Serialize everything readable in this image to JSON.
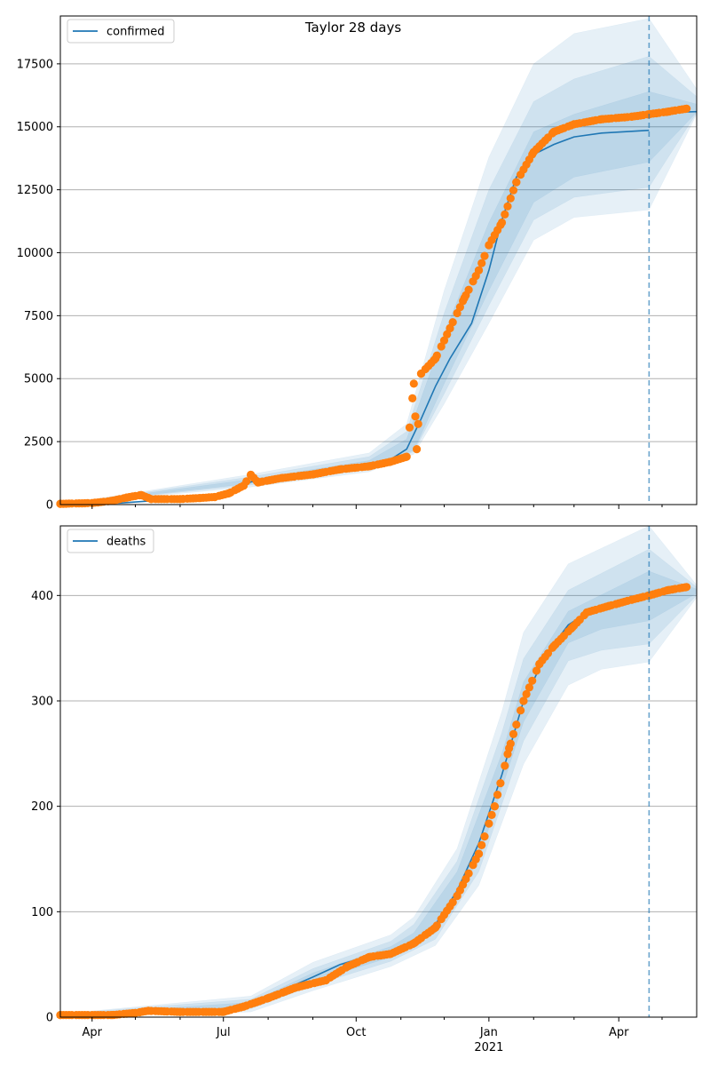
{
  "title": "Taylor 28 days",
  "colors": {
    "model": "#1f77b4",
    "observed": "#ff7f0e",
    "grid": "#b0b0b0"
  },
  "chart_data": [
    {
      "type": "line",
      "legend": "confirmed",
      "legend_loc": "upper-left",
      "grid_y": true,
      "ylim": [
        0,
        19400
      ],
      "yticks": [
        0,
        2500,
        5000,
        7500,
        10000,
        12500,
        15000,
        17500
      ],
      "xlim": [
        "2020-03-10",
        "2021-05-25"
      ],
      "forecast_start": "2021-04-22",
      "model": {
        "name": "confirmed",
        "points": [
          [
            "2020-03-10",
            0
          ],
          [
            "2020-04-20",
            60
          ],
          [
            "2020-05-20",
            180
          ],
          [
            "2020-06-20",
            280
          ],
          [
            "2020-07-05",
            500
          ],
          [
            "2020-07-20",
            900
          ],
          [
            "2020-08-10",
            1100
          ],
          [
            "2020-09-01",
            1250
          ],
          [
            "2020-09-20",
            1420
          ],
          [
            "2020-10-10",
            1600
          ],
          [
            "2020-10-25",
            1800
          ],
          [
            "2020-11-05",
            2200
          ],
          [
            "2020-11-15",
            3400
          ],
          [
            "2020-11-25",
            4700
          ],
          [
            "2020-12-05",
            5800
          ],
          [
            "2020-12-20",
            7200
          ],
          [
            "2021-01-01",
            9300
          ],
          [
            "2021-01-10",
            11300
          ],
          [
            "2021-01-20",
            13000
          ],
          [
            "2021-02-01",
            13900
          ],
          [
            "2021-02-15",
            14300
          ],
          [
            "2021-03-01",
            14600
          ],
          [
            "2021-03-20",
            14750
          ],
          [
            "2021-04-22",
            14860
          ],
          [
            "2021-04-23",
            15550
          ],
          [
            "2021-05-25",
            15600
          ]
        ]
      },
      "bands": [
        {
          "lower": [
            [
              "2020-03-10",
              0
            ],
            [
              "2020-07-20",
              700
            ],
            [
              "2020-10-10",
              1300
            ],
            [
              "2020-11-10",
              2000
            ],
            [
              "2020-12-01",
              4000
            ],
            [
              "2021-01-01",
              7200
            ],
            [
              "2021-02-01",
              10500
            ],
            [
              "2021-03-01",
              11400
            ],
            [
              "2021-04-22",
              11700
            ],
            [
              "2021-05-25",
              15500
            ]
          ],
          "upper": [
            [
              "2020-03-10",
              0
            ],
            [
              "2020-07-20",
              1200
            ],
            [
              "2020-10-10",
              2050
            ],
            [
              "2020-11-05",
              3200
            ],
            [
              "2020-12-01",
              8500
            ],
            [
              "2021-01-01",
              13800
            ],
            [
              "2021-02-01",
              17500
            ],
            [
              "2021-03-01",
              18700
            ],
            [
              "2021-04-22",
              19300
            ],
            [
              "2021-05-25",
              16500
            ]
          ]
        },
        {
          "lower": [
            [
              "2020-03-10",
              0
            ],
            [
              "2020-07-20",
              780
            ],
            [
              "2020-10-10",
              1400
            ],
            [
              "2020-11-10",
              2100
            ],
            [
              "2020-12-01",
              4400
            ],
            [
              "2021-01-01",
              7900
            ],
            [
              "2021-02-01",
              11300
            ],
            [
              "2021-03-01",
              12200
            ],
            [
              "2021-04-22",
              12600
            ],
            [
              "2021-05-25",
              15550
            ]
          ],
          "upper": [
            [
              "2020-03-10",
              0
            ],
            [
              "2020-07-20",
              1100
            ],
            [
              "2020-10-10",
              1900
            ],
            [
              "2020-11-05",
              2900
            ],
            [
              "2020-12-01",
              7600
            ],
            [
              "2021-01-01",
              12500
            ],
            [
              "2021-02-01",
              16000
            ],
            [
              "2021-03-01",
              16900
            ],
            [
              "2021-04-22",
              17800
            ],
            [
              "2021-05-25",
              16200
            ]
          ]
        },
        {
          "lower": [
            [
              "2020-03-10",
              0
            ],
            [
              "2020-07-20",
              840
            ],
            [
              "2020-10-10",
              1500
            ],
            [
              "2020-11-10",
              2150
            ],
            [
              "2020-12-01",
              4800
            ],
            [
              "2021-01-01",
              8500
            ],
            [
              "2021-02-01",
              12000
            ],
            [
              "2021-03-01",
              13000
            ],
            [
              "2021-04-22",
              13600
            ],
            [
              "2021-05-25",
              15580
            ]
          ],
          "upper": [
            [
              "2020-03-10",
              0
            ],
            [
              "2020-07-20",
              1000
            ],
            [
              "2020-10-10",
              1750
            ],
            [
              "2020-11-05",
              2600
            ],
            [
              "2020-12-01",
              6800
            ],
            [
              "2021-01-01",
              11200
            ],
            [
              "2021-02-01",
              14800
            ],
            [
              "2021-03-01",
              15500
            ],
            [
              "2021-04-22",
              16400
            ],
            [
              "2021-05-25",
              15900
            ]
          ]
        }
      ],
      "observed": [
        [
          "2020-03-10",
          30
        ],
        [
          "2020-04-01",
          60
        ],
        [
          "2020-04-15",
          150
        ],
        [
          "2020-04-25",
          280
        ],
        [
          "2020-05-05",
          380
        ],
        [
          "2020-05-12",
          220
        ],
        [
          "2020-06-01",
          220
        ],
        [
          "2020-06-15",
          260
        ],
        [
          "2020-06-25",
          300
        ],
        [
          "2020-07-05",
          450
        ],
        [
          "2020-07-15",
          750
        ],
        [
          "2020-07-20",
          1180
        ],
        [
          "2020-07-25",
          880
        ],
        [
          "2020-08-10",
          1050
        ],
        [
          "2020-09-01",
          1200
        ],
        [
          "2020-09-20",
          1400
        ],
        [
          "2020-10-10",
          1520
        ],
        [
          "2020-10-25",
          1700
        ],
        [
          "2020-11-05",
          1900
        ],
        [
          "2020-11-12",
          2200
        ],
        [
          "2020-11-10",
          4800
        ],
        [
          "2020-11-15",
          5200
        ],
        [
          "2020-11-25",
          5800
        ],
        [
          "2020-12-05",
          7000
        ],
        [
          "2020-12-15",
          8200
        ],
        [
          "2020-12-25",
          9300
        ],
        [
          "2021-01-01",
          10300
        ],
        [
          "2021-01-10",
          11200
        ],
        [
          "2021-01-20",
          12800
        ],
        [
          "2021-02-01",
          14000
        ],
        [
          "2021-02-15",
          14800
        ],
        [
          "2021-03-01",
          15100
        ],
        [
          "2021-03-20",
          15300
        ],
        [
          "2021-04-10",
          15400
        ],
        [
          "2021-04-22",
          15500
        ],
        [
          "2021-05-05",
          15600
        ],
        [
          "2021-05-18",
          15720
        ]
      ]
    },
    {
      "type": "line",
      "legend": "deaths",
      "legend_loc": "upper-left",
      "grid_y": true,
      "ylim": [
        0,
        466
      ],
      "yticks": [
        0,
        100,
        200,
        300,
        400
      ],
      "xlim": [
        "2020-03-10",
        "2021-05-25"
      ],
      "forecast_start": "2021-04-22",
      "model": {
        "name": "deaths",
        "points": [
          [
            "2020-03-10",
            2
          ],
          [
            "2020-06-01",
            5
          ],
          [
            "2020-07-01",
            7
          ],
          [
            "2020-07-20",
            12
          ],
          [
            "2020-08-10",
            25
          ],
          [
            "2020-09-01",
            38
          ],
          [
            "2020-09-20",
            50
          ],
          [
            "2020-10-10",
            58
          ],
          [
            "2020-10-25",
            62
          ],
          [
            "2020-11-10",
            72
          ],
          [
            "2020-11-25",
            88
          ],
          [
            "2020-12-10",
            120
          ],
          [
            "2020-12-25",
            165
          ],
          [
            "2021-01-10",
            230
          ],
          [
            "2021-01-25",
            300
          ],
          [
            "2021-02-10",
            345
          ],
          [
            "2021-02-25",
            372
          ],
          [
            "2021-03-15",
            388
          ],
          [
            "2021-04-22",
            398
          ],
          [
            "2021-05-25",
            404
          ]
        ]
      },
      "bands": [
        {
          "lower": [
            [
              "2020-03-10",
              0
            ],
            [
              "2020-07-20",
              5
            ],
            [
              "2020-09-01",
              25
            ],
            [
              "2020-10-25",
              48
            ],
            [
              "2020-11-25",
              68
            ],
            [
              "2020-12-25",
              125
            ],
            [
              "2021-01-25",
              240
            ],
            [
              "2021-02-25",
              315
            ],
            [
              "2021-03-20",
              330
            ],
            [
              "2021-04-22",
              337
            ],
            [
              "2021-05-25",
              398
            ]
          ],
          "upper": [
            [
              "2020-03-10",
              3
            ],
            [
              "2020-07-20",
              20
            ],
            [
              "2020-09-01",
              52
            ],
            [
              "2020-10-25",
              78
            ],
            [
              "2020-11-10",
              95
            ],
            [
              "2020-12-10",
              160
            ],
            [
              "2021-01-10",
              290
            ],
            [
              "2021-01-25",
              365
            ],
            [
              "2021-02-25",
              430
            ],
            [
              "2021-04-22",
              466
            ],
            [
              "2021-05-25",
              410
            ]
          ]
        },
        {
          "lower": [
            [
              "2020-03-10",
              1
            ],
            [
              "2020-07-20",
              8
            ],
            [
              "2020-09-01",
              30
            ],
            [
              "2020-10-25",
              53
            ],
            [
              "2020-11-25",
              74
            ],
            [
              "2020-12-25",
              138
            ],
            [
              "2021-01-25",
              262
            ],
            [
              "2021-02-25",
              338
            ],
            [
              "2021-03-20",
              348
            ],
            [
              "2021-04-22",
              354
            ],
            [
              "2021-05-25",
              400
            ]
          ],
          "upper": [
            [
              "2020-03-10",
              3
            ],
            [
              "2020-07-20",
              17
            ],
            [
              "2020-09-01",
              46
            ],
            [
              "2020-10-25",
              72
            ],
            [
              "2020-11-10",
              88
            ],
            [
              "2020-12-10",
              148
            ],
            [
              "2021-01-10",
              270
            ],
            [
              "2021-01-25",
              340
            ],
            [
              "2021-02-25",
              405
            ],
            [
              "2021-04-22",
              444
            ],
            [
              "2021-05-25",
              408
            ]
          ]
        },
        {
          "lower": [
            [
              "2020-03-10",
              1
            ],
            [
              "2020-07-20",
              10
            ],
            [
              "2020-09-01",
              34
            ],
            [
              "2020-10-25",
              57
            ],
            [
              "2020-11-25",
              80
            ],
            [
              "2020-12-25",
              150
            ],
            [
              "2021-01-25",
              280
            ],
            [
              "2021-02-25",
              355
            ],
            [
              "2021-03-20",
              368
            ],
            [
              "2021-04-22",
              376
            ],
            [
              "2021-05-25",
              402
            ]
          ],
          "upper": [
            [
              "2020-03-10",
              2
            ],
            [
              "2020-07-20",
              14
            ],
            [
              "2020-09-01",
              42
            ],
            [
              "2020-10-25",
              67
            ],
            [
              "2020-11-10",
              80
            ],
            [
              "2020-12-10",
              138
            ],
            [
              "2021-01-10",
              250
            ],
            [
              "2021-01-25",
              318
            ],
            [
              "2021-02-25",
              385
            ],
            [
              "2021-04-22",
              423
            ],
            [
              "2021-05-25",
              406
            ]
          ]
        }
      ],
      "observed": [
        [
          "2020-03-10",
          2
        ],
        [
          "2020-04-15",
          2
        ],
        [
          "2020-05-01",
          4
        ],
        [
          "2020-05-10",
          6
        ],
        [
          "2020-06-01",
          5
        ],
        [
          "2020-07-01",
          5
        ],
        [
          "2020-07-15",
          10
        ],
        [
          "2020-08-01",
          18
        ],
        [
          "2020-08-20",
          28
        ],
        [
          "2020-09-10",
          35
        ],
        [
          "2020-09-25",
          48
        ],
        [
          "2020-10-10",
          57
        ],
        [
          "2020-10-25",
          60
        ],
        [
          "2020-11-10",
          70
        ],
        [
          "2020-11-25",
          85
        ],
        [
          "2020-12-10",
          115
        ],
        [
          "2020-12-25",
          155
        ],
        [
          "2021-01-05",
          200
        ],
        [
          "2021-01-15",
          255
        ],
        [
          "2021-01-25",
          300
        ],
        [
          "2021-02-05",
          335
        ],
        [
          "2021-02-15",
          352
        ],
        [
          "2021-02-28",
          370
        ],
        [
          "2021-03-10",
          384
        ],
        [
          "2021-03-25",
          390
        ],
        [
          "2021-04-10",
          396
        ],
        [
          "2021-04-22",
          400
        ],
        [
          "2021-05-05",
          405
        ],
        [
          "2021-05-18",
          408
        ]
      ]
    }
  ],
  "x_axis": {
    "ticks": [
      {
        "date": "2020-04-01",
        "label": "Apr",
        "year": ""
      },
      {
        "date": "2020-07-01",
        "label": "Jul",
        "year": ""
      },
      {
        "date": "2020-10-01",
        "label": "Oct",
        "year": ""
      },
      {
        "date": "2021-01-01",
        "label": "Jan",
        "year": "2021"
      },
      {
        "date": "2021-04-01",
        "label": "Apr",
        "year": ""
      }
    ],
    "minor": [
      "2020-05-01",
      "2020-06-01",
      "2020-08-01",
      "2020-09-01",
      "2020-11-01",
      "2020-12-01",
      "2021-02-01",
      "2021-03-01",
      "2021-05-01"
    ]
  }
}
